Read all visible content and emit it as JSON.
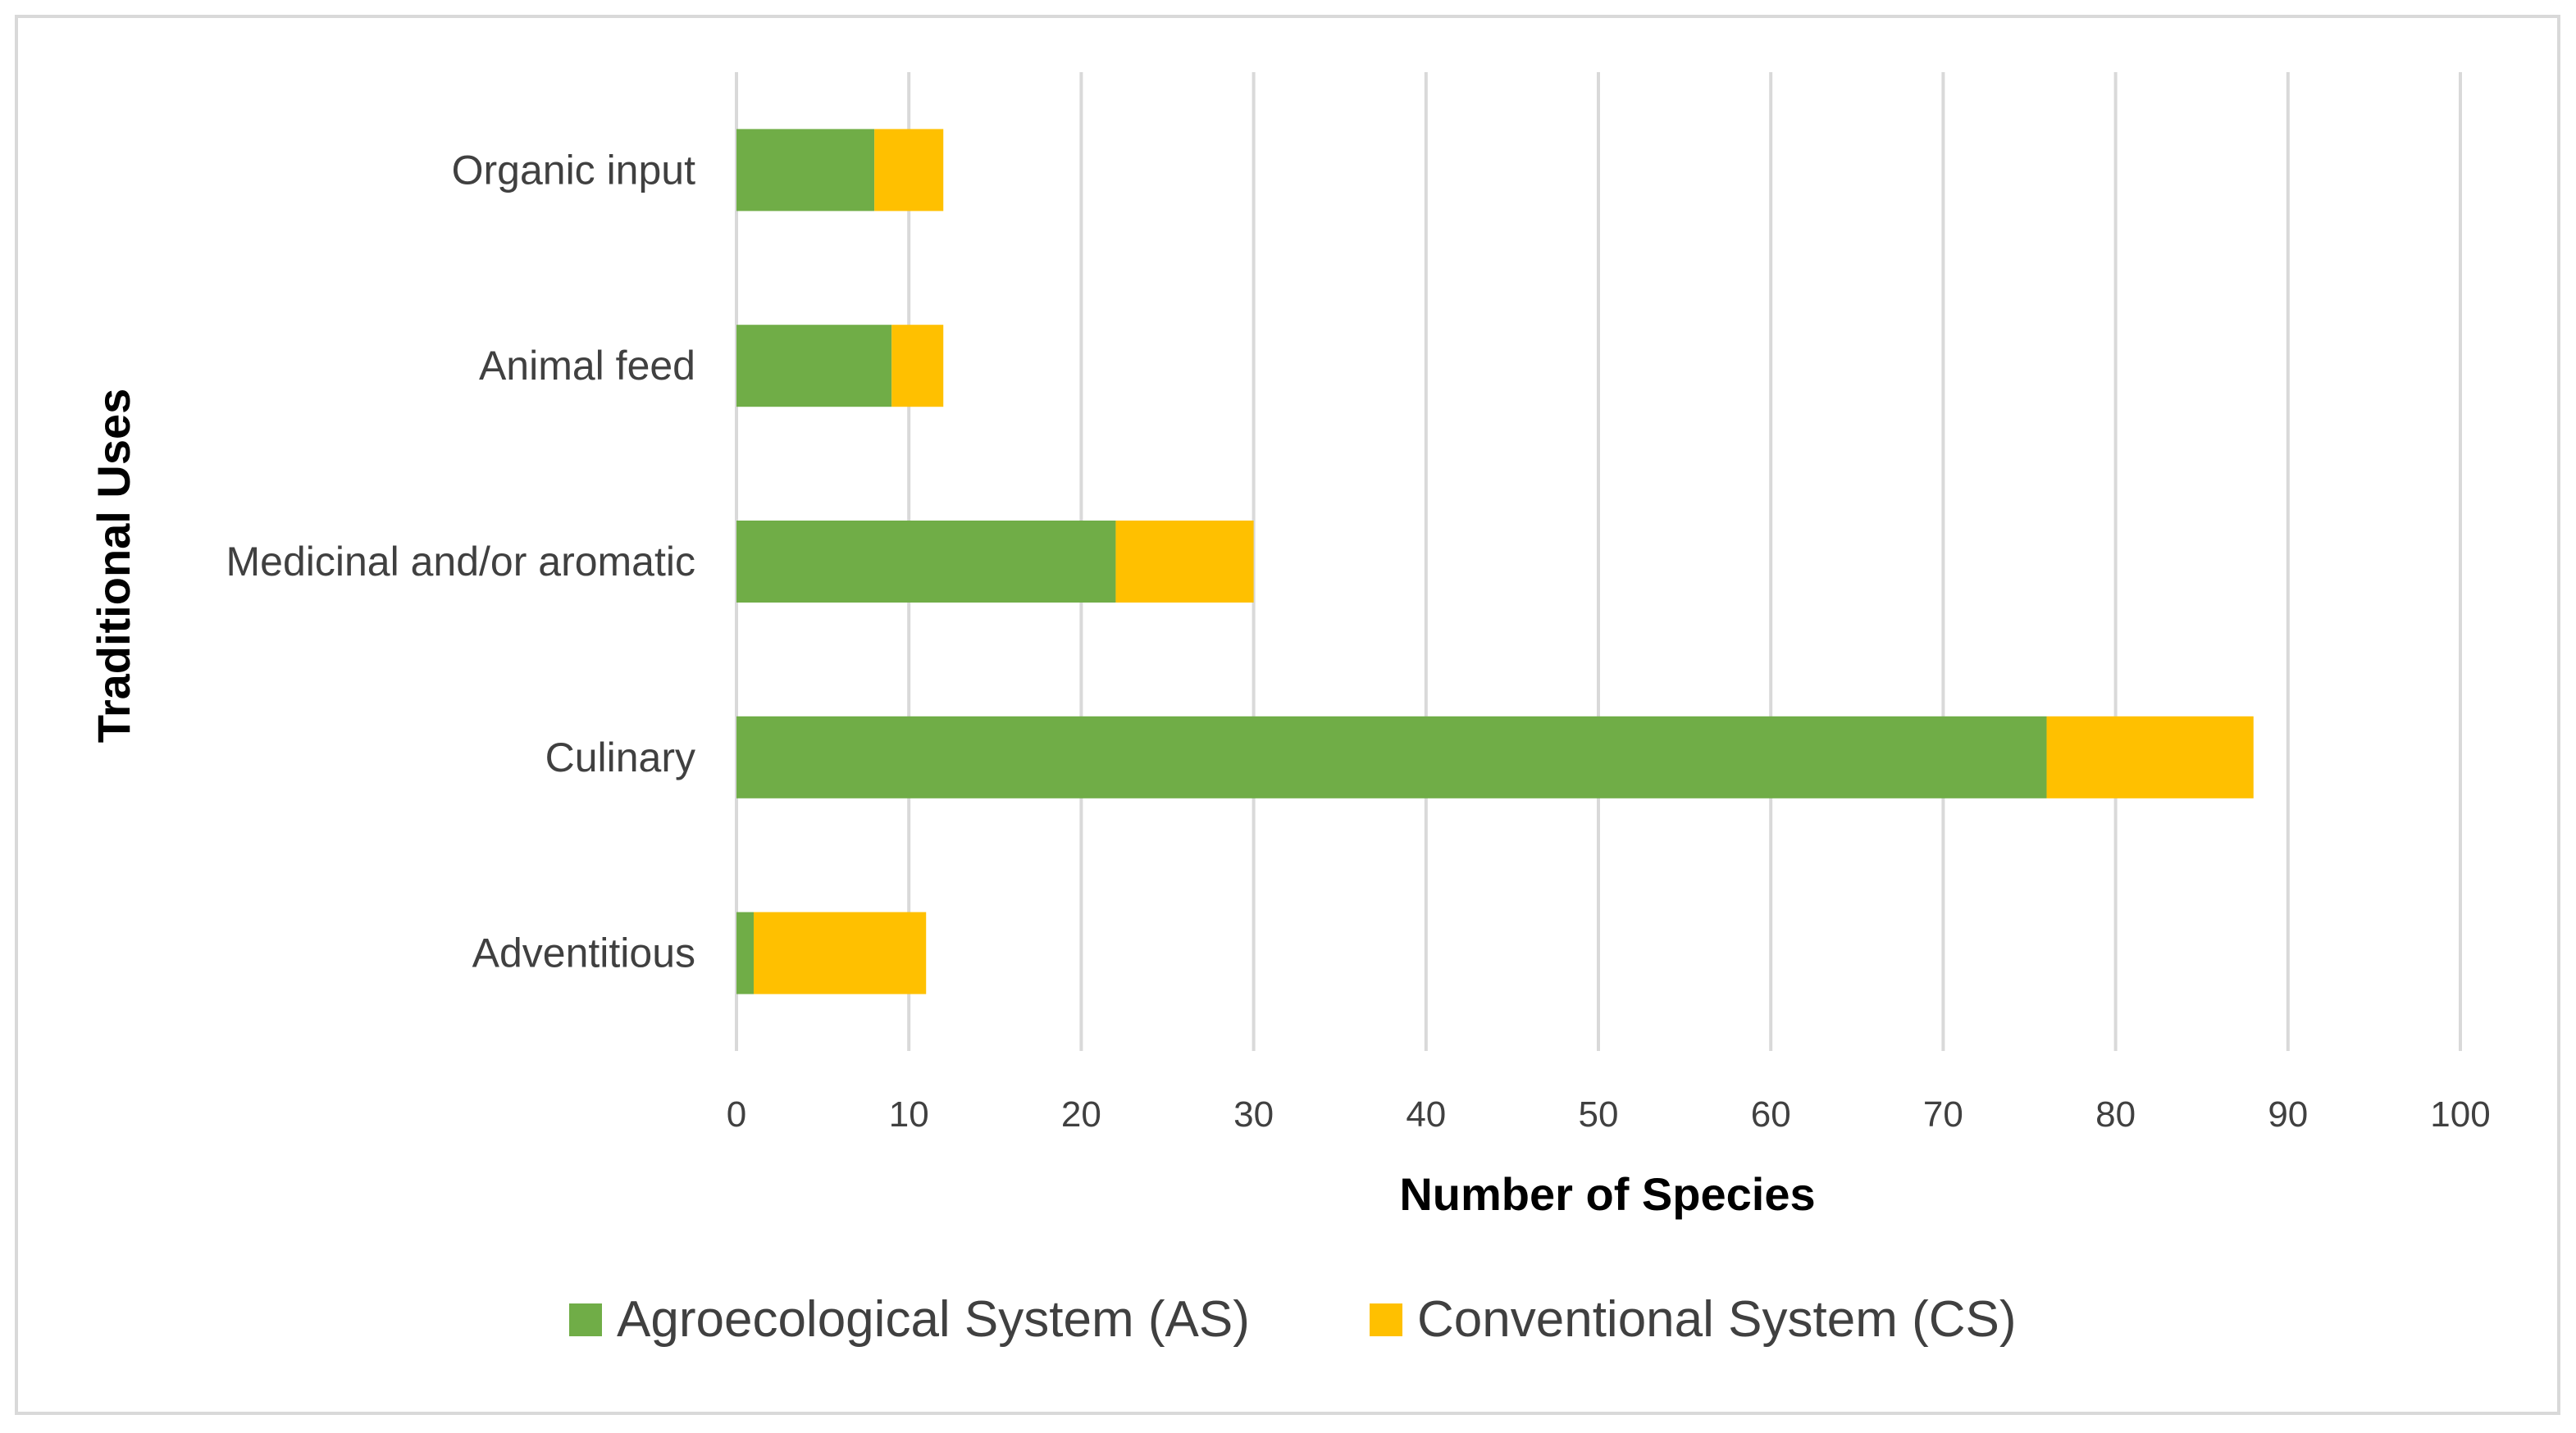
{
  "chart_data": {
    "type": "bar",
    "orientation": "horizontal",
    "stacked": true,
    "categories": [
      "Organic input",
      "Animal feed",
      "Medicinal and/or aromatic",
      "Culinary",
      "Adventitious"
    ],
    "series": [
      {
        "name": "Agroecological System (AS)",
        "color": "#70AD47",
        "values": [
          8,
          9,
          22,
          76,
          1
        ]
      },
      {
        "name": "Conventional System (CS)",
        "color": "#FFC000",
        "values": [
          4,
          3,
          8,
          12,
          10
        ]
      }
    ],
    "xlabel": "Number of Species",
    "ylabel": "Traditional Uses",
    "xlim": [
      0,
      100
    ],
    "xticks": [
      "0",
      "10",
      "20",
      "30",
      "40",
      "50",
      "60",
      "70",
      "80",
      "90",
      "100"
    ],
    "grid": true,
    "legend_position": "bottom"
  }
}
